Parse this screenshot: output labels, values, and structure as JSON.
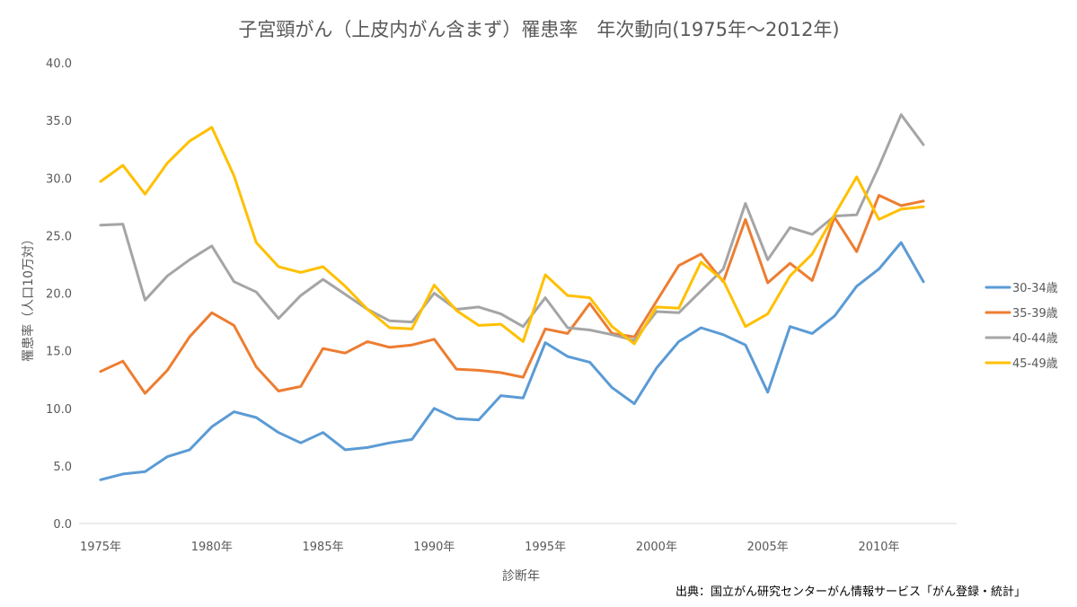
{
  "chart_data": {
    "type": "line",
    "title": "子宮頸がん（上皮内がん含まず）罹患率　年次動向(1975年～2012年)",
    "xlabel": "診断年",
    "ylabel": "罹患率（人口10万対）",
    "ylim": [
      0,
      40
    ],
    "yticks": [
      "0.0",
      "5.0",
      "10.0",
      "15.0",
      "20.0",
      "25.0",
      "30.0",
      "35.0",
      "40.0"
    ],
    "xlim": [
      1975,
      2012
    ],
    "xticks": [
      "1975年",
      "1980年",
      "1985年",
      "1990年",
      "1995年",
      "2000年",
      "2005年",
      "2010年"
    ],
    "legend_position": "right",
    "grid": false,
    "x": [
      1975,
      1976,
      1977,
      1978,
      1979,
      1980,
      1981,
      1982,
      1983,
      1984,
      1985,
      1986,
      1987,
      1988,
      1989,
      1990,
      1991,
      1992,
      1993,
      1994,
      1995,
      1996,
      1997,
      1998,
      1999,
      2000,
      2001,
      2002,
      2003,
      2004,
      2005,
      2006,
      2007,
      2008,
      2009,
      2010,
      2011,
      2012
    ],
    "series": [
      {
        "name": "30-34歳",
        "color": "#5b9bd5",
        "values": [
          3.8,
          4.3,
          4.5,
          5.8,
          6.4,
          8.4,
          9.7,
          9.2,
          7.9,
          7.0,
          7.9,
          6.4,
          6.6,
          7.0,
          7.3,
          10.0,
          9.1,
          9.0,
          11.1,
          10.9,
          15.7,
          14.5,
          14.0,
          11.8,
          10.4,
          13.5,
          15.8,
          17.0,
          16.4,
          15.5,
          11.4,
          17.1,
          16.5,
          18.0,
          20.6,
          22.1,
          24.4,
          21.0
        ]
      },
      {
        "name": "35-39歳",
        "color": "#ed7d31",
        "values": [
          13.2,
          14.1,
          11.3,
          13.3,
          16.2,
          18.3,
          17.2,
          13.6,
          11.5,
          11.9,
          15.2,
          14.8,
          15.8,
          15.3,
          15.5,
          16.0,
          13.4,
          13.3,
          13.1,
          12.7,
          16.9,
          16.5,
          19.1,
          16.5,
          16.2,
          19.3,
          22.4,
          23.4,
          21.0,
          26.4,
          20.9,
          22.6,
          21.1,
          26.6,
          23.6,
          28.5,
          27.6,
          28.0
        ]
      },
      {
        "name": "40-44歳",
        "color": "#a5a5a5",
        "values": [
          25.9,
          26.0,
          19.4,
          21.5,
          22.9,
          24.1,
          21.0,
          20.1,
          17.8,
          19.8,
          21.2,
          19.9,
          18.6,
          17.6,
          17.5,
          20.0,
          18.6,
          18.8,
          18.2,
          17.1,
          19.6,
          17.0,
          16.8,
          16.4,
          15.9,
          18.4,
          18.3,
          20.2,
          22.1,
          27.8,
          22.9,
          25.7,
          25.1,
          26.7,
          26.8,
          31.0,
          35.5,
          32.9
        ]
      },
      {
        "name": "45-49歳",
        "color": "#ffc000",
        "values": [
          29.7,
          31.1,
          28.6,
          31.3,
          33.2,
          34.4,
          30.2,
          24.4,
          22.3,
          21.8,
          22.3,
          20.6,
          18.6,
          17.0,
          16.9,
          20.7,
          18.5,
          17.2,
          17.3,
          15.8,
          21.6,
          19.8,
          19.6,
          17.1,
          15.6,
          18.8,
          18.7,
          22.7,
          21.1,
          17.1,
          18.2,
          21.5,
          23.4,
          26.8,
          30.1,
          26.4,
          27.3,
          27.5
        ]
      }
    ],
    "source": "出典：国立がん研究センターがん情報サービス「がん登録・統計」"
  }
}
